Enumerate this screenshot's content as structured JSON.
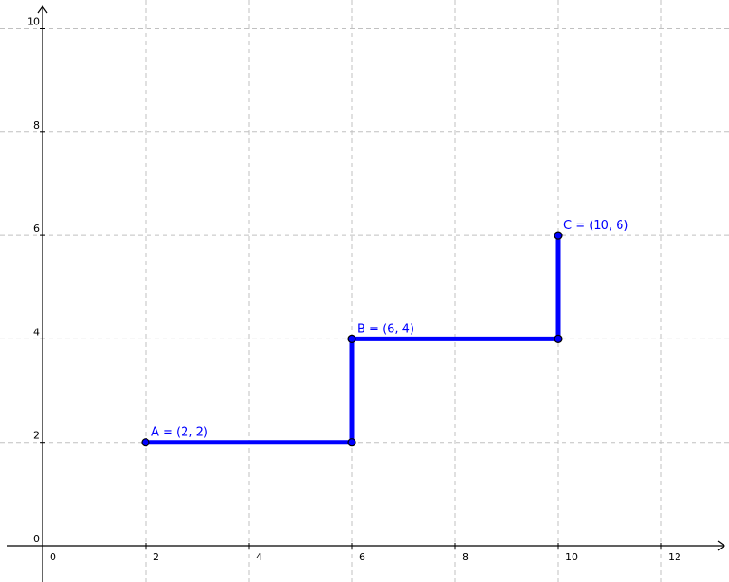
{
  "chart_data": {
    "type": "line",
    "title": "",
    "xlabel": "",
    "ylabel": "",
    "xlim": [
      -0.3,
      13
    ],
    "ylim": [
      -0.3,
      10.2
    ],
    "grid": true,
    "x_ticks": [
      0,
      2,
      4,
      6,
      8,
      10,
      12
    ],
    "y_ticks": [
      0,
      2,
      4,
      6,
      8,
      10
    ],
    "x_tick_labels": [
      "0",
      "2",
      "4",
      "6",
      "8",
      "10",
      "12"
    ],
    "y_tick_labels": [
      "0",
      "2",
      "4",
      "6",
      "8",
      "10"
    ],
    "series": [
      {
        "x": [
          2,
          6,
          6,
          10,
          10
        ],
        "y": [
          2,
          2,
          4,
          4,
          6
        ]
      }
    ],
    "points": [
      {
        "x": 2,
        "y": 2,
        "label": "A = (2, 2)"
      },
      {
        "x": 6,
        "y": 2,
        "label": ""
      },
      {
        "x": 6,
        "y": 4,
        "label": "B = (6, 4)"
      },
      {
        "x": 10,
        "y": 4,
        "label": ""
      },
      {
        "x": 10,
        "y": 6,
        "label": "C = (10, 6)"
      }
    ],
    "colors": {
      "series": "#0000ff",
      "point_fill": "#0000ff",
      "point_stroke": "#000000",
      "label": "#0000ff",
      "grid": "#c0c0c0",
      "axis": "#000000"
    }
  }
}
